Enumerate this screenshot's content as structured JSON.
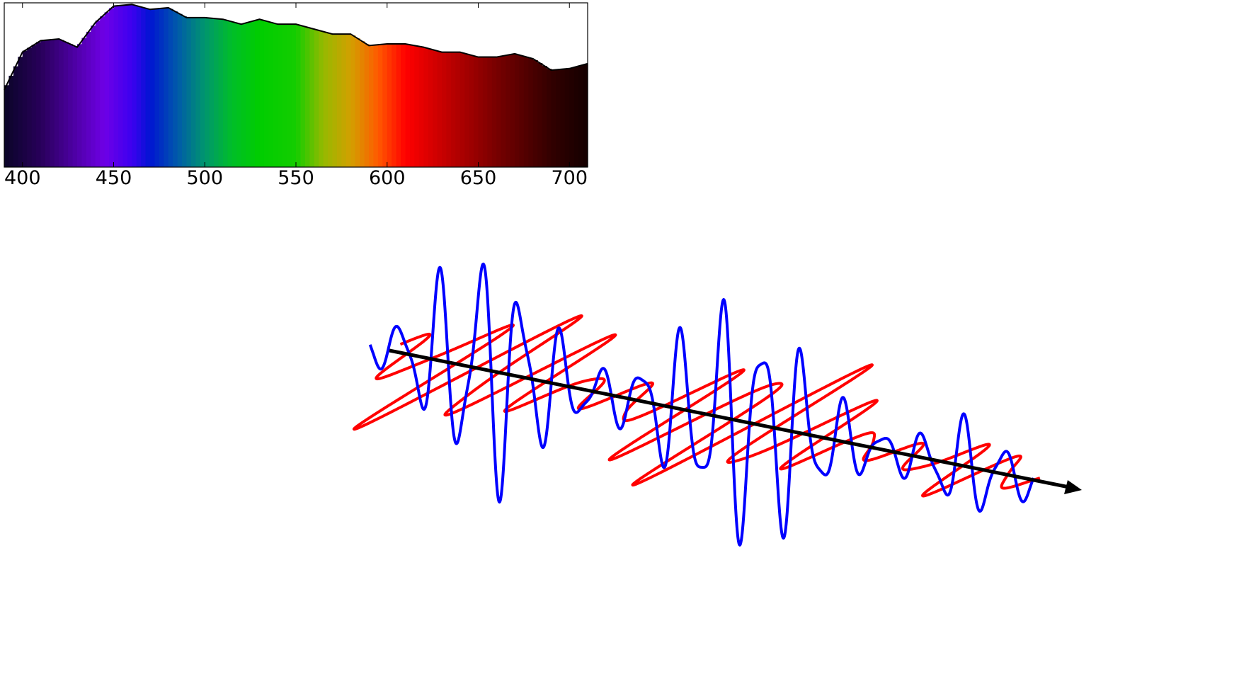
{
  "chart_data": [
    {
      "type": "area",
      "title": "",
      "xlabel": "",
      "ylabel": "",
      "xlim": [
        390,
        710
      ],
      "ylim": [
        0,
        1.0
      ],
      "grid": false,
      "legend": "none",
      "x_ticks": [
        400,
        450,
        500,
        550,
        600,
        650,
        700
      ],
      "x_tick_labels": [
        "400",
        "450",
        "500",
        "550",
        "600",
        "650",
        "700"
      ],
      "series": [
        {
          "x": [
            390,
            400,
            410,
            420,
            430,
            440,
            450,
            460,
            470,
            480,
            490,
            500,
            510,
            520,
            530,
            540,
            550,
            560,
            570,
            580,
            590,
            600,
            610,
            620,
            630,
            640,
            650,
            660,
            670,
            680,
            690,
            700,
            710
          ],
          "values": [
            0.47,
            0.7,
            0.77,
            0.78,
            0.73,
            0.88,
            0.98,
            0.99,
            0.96,
            0.97,
            0.91,
            0.91,
            0.9,
            0.87,
            0.9,
            0.87,
            0.87,
            0.84,
            0.81,
            0.81,
            0.74,
            0.75,
            0.75,
            0.73,
            0.7,
            0.7,
            0.67,
            0.67,
            0.69,
            0.66,
            0.59,
            0.6,
            0.63
          ]
        }
      ],
      "fill": "wavelength-colored spectrum",
      "outline_color": "#000000"
    },
    {
      "type": "line",
      "title": "",
      "xlabel": "",
      "ylabel": "",
      "grid": false,
      "legend": "none",
      "axis_arrow_color": "#000000",
      "series": [
        {
          "color": "#0000ff",
          "style": "vertical oscillation along axis"
        },
        {
          "color": "#ff0000",
          "style": "oblique oscillation along axis"
        }
      ]
    }
  ]
}
